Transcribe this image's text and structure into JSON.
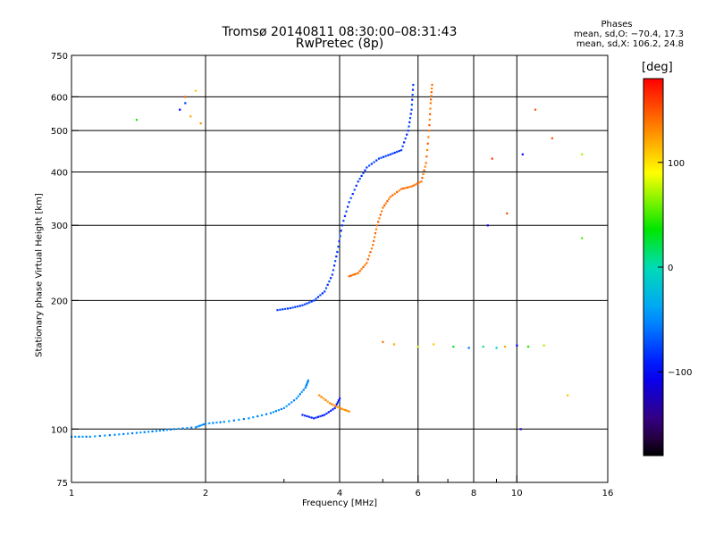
{
  "title": "Tromsø 20140811 08:30:00–08:31:43",
  "subtitle": "RwPretec (8p)",
  "phases": {
    "heading": "Phases",
    "line1": "mean, sd,O: −70.4, 17.3",
    "line2": "mean, sd,X: 106.2, 24.8"
  },
  "chart_data": {
    "type": "scatter",
    "xlabel": "Frequency [MHz]",
    "ylabel": "Stationary phase Virtual Height [km]",
    "xscale": "log",
    "yscale": "log",
    "xlim": [
      1,
      16
    ],
    "ylim": [
      75,
      750
    ],
    "xticks": [
      1,
      2,
      4,
      6,
      8,
      10,
      16
    ],
    "xticklabels": [
      "1",
      "2",
      "4",
      "6",
      "8",
      "10",
      "16"
    ],
    "xminor": [
      3,
      5,
      7,
      9
    ],
    "xgrid": [
      2,
      4,
      6,
      8,
      10
    ],
    "yticks": [
      75,
      100,
      200,
      300,
      400,
      500,
      600,
      750
    ],
    "yticklabels": [
      "75",
      "100",
      "200",
      "300",
      "400",
      "500",
      "600",
      "750"
    ],
    "ygrid": [
      100,
      200,
      300,
      400,
      500,
      600
    ],
    "grid": true,
    "colorbar": {
      "label": "[deg]",
      "range": [
        -180,
        180
      ],
      "ticks": [
        -100,
        0,
        100
      ],
      "ticklabels": [
        "−100",
        "0",
        "100"
      ]
    },
    "traces": [
      {
        "note": "O-mode E/low layer",
        "phase": -50,
        "points": [
          [
            1.0,
            96
          ],
          [
            1.1,
            96
          ],
          [
            1.25,
            97
          ],
          [
            1.4,
            98
          ],
          [
            1.55,
            99
          ],
          [
            1.7,
            100
          ],
          [
            1.9,
            101
          ],
          [
            2.0,
            103
          ],
          [
            2.2,
            104
          ],
          [
            2.5,
            106
          ],
          [
            2.8,
            109
          ],
          [
            3.0,
            112
          ],
          [
            3.2,
            118
          ],
          [
            3.35,
            125
          ],
          [
            3.4,
            130
          ]
        ]
      },
      {
        "note": "O-mode E cusp",
        "phase": -90,
        "points": [
          [
            3.3,
            108
          ],
          [
            3.5,
            106
          ],
          [
            3.7,
            108
          ],
          [
            3.9,
            112
          ],
          [
            4.0,
            118
          ]
        ]
      },
      {
        "note": "X-mode E cusp",
        "phase": 130,
        "points": [
          [
            3.6,
            120
          ],
          [
            3.8,
            115
          ],
          [
            4.0,
            112
          ],
          [
            4.2,
            110
          ]
        ]
      },
      {
        "note": "O-mode F trace",
        "phase": -80,
        "points": [
          [
            2.9,
            190
          ],
          [
            3.1,
            192
          ],
          [
            3.3,
            195
          ],
          [
            3.5,
            200
          ],
          [
            3.7,
            210
          ],
          [
            3.85,
            230
          ],
          [
            3.95,
            260
          ],
          [
            4.05,
            300
          ],
          [
            4.2,
            340
          ],
          [
            4.4,
            380
          ],
          [
            4.6,
            410
          ],
          [
            4.9,
            430
          ],
          [
            5.2,
            440
          ],
          [
            5.5,
            450
          ],
          [
            5.7,
            500
          ],
          [
            5.8,
            560
          ],
          [
            5.85,
            640
          ]
        ]
      },
      {
        "note": "X-mode F trace",
        "phase": 140,
        "points": [
          [
            4.2,
            228
          ],
          [
            4.4,
            232
          ],
          [
            4.6,
            245
          ],
          [
            4.75,
            270
          ],
          [
            4.85,
            300
          ],
          [
            5.0,
            330
          ],
          [
            5.2,
            350
          ],
          [
            5.5,
            365
          ],
          [
            5.8,
            370
          ],
          [
            6.1,
            380
          ],
          [
            6.25,
            420
          ],
          [
            6.35,
            500
          ],
          [
            6.4,
            580
          ],
          [
            6.45,
            640
          ]
        ]
      }
    ],
    "scatter_groups": [
      {
        "note": "sporadic near 1.8 MHz",
        "points": [
          [
            1.75,
            560,
            -100
          ],
          [
            1.8,
            600,
            150
          ],
          [
            1.85,
            540,
            120
          ],
          [
            1.9,
            620,
            110
          ],
          [
            1.8,
            580,
            -80
          ],
          [
            1.95,
            520,
            130
          ],
          [
            1.4,
            530,
            40
          ]
        ]
      },
      {
        "note": "Es horizontal layer",
        "points": [
          [
            5.0,
            160,
            140
          ],
          [
            5.3,
            158,
            120
          ],
          [
            6.0,
            156,
            80
          ],
          [
            6.5,
            158,
            110
          ],
          [
            7.2,
            156,
            30
          ],
          [
            7.8,
            155,
            -60
          ],
          [
            8.4,
            156,
            10
          ],
          [
            9.0,
            155,
            -10
          ],
          [
            9.4,
            156,
            120
          ],
          [
            10.0,
            157,
            -100
          ],
          [
            10.6,
            156,
            40
          ],
          [
            11.5,
            157,
            70
          ]
        ]
      },
      {
        "note": "scattered high freq",
        "points": [
          [
            8.6,
            300,
            -110
          ],
          [
            9.5,
            320,
            150
          ],
          [
            10.3,
            440,
            -100
          ],
          [
            11.0,
            560,
            150
          ],
          [
            12.0,
            480,
            150
          ],
          [
            8.8,
            430,
            160
          ],
          [
            14.0,
            440,
            70
          ],
          [
            14.0,
            280,
            50
          ],
          [
            10.2,
            100,
            -120
          ],
          [
            13.0,
            120,
            110
          ]
        ]
      }
    ]
  }
}
